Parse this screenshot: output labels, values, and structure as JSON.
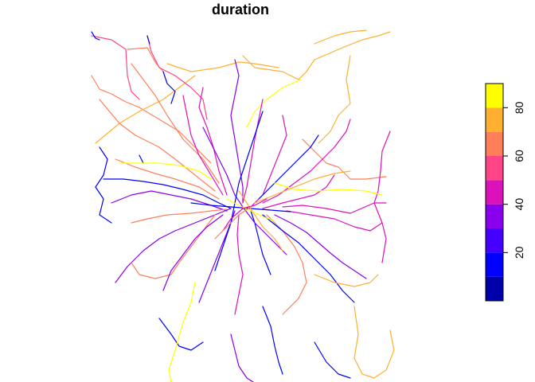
{
  "title": "duration",
  "legend": {
    "breaks": [
      0,
      10,
      20,
      30,
      40,
      50,
      60,
      70,
      80,
      90
    ],
    "colors": [
      "#0000aa",
      "#0000ff",
      "#4400ff",
      "#8800ee",
      "#dd11bb",
      "#ff4488",
      "#ff7f5a",
      "#ffb030",
      "#ffff00"
    ],
    "tick_values": [
      "20",
      "40",
      "60",
      "80"
    ]
  },
  "map_data": {
    "variable": "duration",
    "color_classes": [
      "#0000ff",
      "#8800ee",
      "#dd11bb",
      "#ff7f5a",
      "#ffb030",
      "#ffff00"
    ]
  }
}
